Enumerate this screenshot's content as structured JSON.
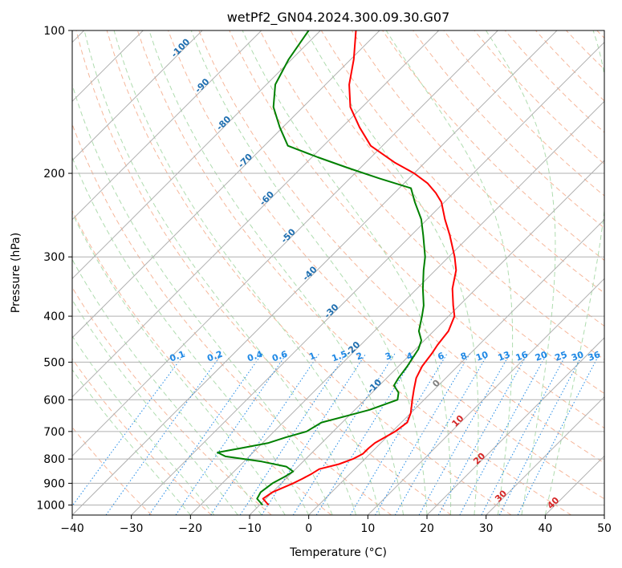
{
  "chart_data": {
    "type": "line",
    "subtype": "skew-t log-p diagram",
    "title": "wetPf2_GN04.2024.300.09.30.G07",
    "xlabel": "Temperature (°C)",
    "ylabel": "Pressure (hPa)",
    "xlim": [
      -40,
      50
    ],
    "ylim_pressure": [
      1050,
      100
    ],
    "y_scale": "log",
    "x_ticks": [
      "−40",
      "−30",
      "−20",
      "−10",
      "0",
      "10",
      "20",
      "30",
      "40",
      "50"
    ],
    "y_ticks": [
      "100",
      "200",
      "300",
      "400",
      "500",
      "600",
      "700",
      "800",
      "900",
      "1000"
    ],
    "grid": true,
    "colors": {
      "temperature": "#ff0000",
      "dewpoint": "#008000",
      "isotherm": "#b0b0b0",
      "dry_adiabat": "#f4a582",
      "moist_adiabat": "#a6d8a6",
      "mixing_ratio": "#1e88e5",
      "iso_label_blue": "#1f6fb0",
      "iso_label_red": "#d62728",
      "iso_label_gray": "#808080"
    },
    "isotherm_labels": [
      "-100",
      "-90",
      "-80",
      "-70",
      "-60",
      "-50",
      "-40",
      "-30",
      "-20",
      "-10",
      "0",
      "10",
      "20",
      "30",
      "40"
    ],
    "mixing_ratio_labels": [
      "0.1",
      "0.2",
      "0.4",
      "0.6",
      "1",
      "1.5",
      "2",
      "3",
      "4",
      "6",
      "8",
      "10",
      "13",
      "16",
      "20",
      "25",
      "30",
      "36"
    ],
    "series": [
      {
        "name": "Temperature",
        "points": [
          [
            1000,
            -8.5
          ],
          [
            970,
            -10.5
          ],
          [
            940,
            -10.0
          ],
          [
            900,
            -8.0
          ],
          [
            880,
            -7.2
          ],
          [
            860,
            -6.5
          ],
          [
            840,
            -6.0
          ],
          [
            820,
            -3.5
          ],
          [
            800,
            -2.0
          ],
          [
            780,
            -1.2
          ],
          [
            760,
            -1.2
          ],
          [
            740,
            -1.0
          ],
          [
            700,
            0.5
          ],
          [
            670,
            1.0
          ],
          [
            640,
            0.0
          ],
          [
            600,
            -2.0
          ],
          [
            570,
            -3.5
          ],
          [
            540,
            -5.0
          ],
          [
            510,
            -6.0
          ],
          [
            480,
            -6.5
          ],
          [
            460,
            -7.0
          ],
          [
            430,
            -7.5
          ],
          [
            400,
            -9.0
          ],
          [
            380,
            -11.0
          ],
          [
            350,
            -14.0
          ],
          [
            320,
            -16.5
          ],
          [
            300,
            -19.0
          ],
          [
            270,
            -23.5
          ],
          [
            250,
            -27.0
          ],
          [
            230,
            -30.5
          ],
          [
            220,
            -33.0
          ],
          [
            210,
            -36.0
          ],
          [
            200,
            -40.0
          ],
          [
            190,
            -45.0
          ],
          [
            175,
            -52.0
          ],
          [
            160,
            -57.0
          ],
          [
            145,
            -62.0
          ],
          [
            130,
            -66.0
          ],
          [
            115,
            -69.5
          ],
          [
            100,
            -74.0
          ]
        ]
      },
      {
        "name": "Dewpoint",
        "points": [
          [
            1000,
            -9.5
          ],
          [
            970,
            -11.5
          ],
          [
            940,
            -12.0
          ],
          [
            900,
            -11.5
          ],
          [
            870,
            -10.5
          ],
          [
            850,
            -10.0
          ],
          [
            830,
            -12.0
          ],
          [
            810,
            -17.0
          ],
          [
            790,
            -24.0
          ],
          [
            775,
            -26.0
          ],
          [
            760,
            -23.0
          ],
          [
            740,
            -19.0
          ],
          [
            720,
            -17.0
          ],
          [
            700,
            -14.5
          ],
          [
            670,
            -13.5
          ],
          [
            650,
            -10.5
          ],
          [
            630,
            -7.5
          ],
          [
            600,
            -4.5
          ],
          [
            580,
            -5.5
          ],
          [
            560,
            -7.5
          ],
          [
            540,
            -8.0
          ],
          [
            510,
            -8.5
          ],
          [
            490,
            -9.0
          ],
          [
            470,
            -9.5
          ],
          [
            450,
            -10.5
          ],
          [
            430,
            -12.5
          ],
          [
            400,
            -14.5
          ],
          [
            380,
            -16.0
          ],
          [
            350,
            -19.0
          ],
          [
            320,
            -22.0
          ],
          [
            300,
            -24.0
          ],
          [
            270,
            -28.0
          ],
          [
            250,
            -31.0
          ],
          [
            230,
            -35.0
          ],
          [
            215,
            -38.0
          ],
          [
            205,
            -45.0
          ],
          [
            195,
            -52.0
          ],
          [
            185,
            -59.0
          ],
          [
            175,
            -66.0
          ],
          [
            160,
            -70.5
          ],
          [
            145,
            -75.0
          ],
          [
            130,
            -78.5
          ],
          [
            115,
            -80.5
          ],
          [
            100,
            -82.0
          ]
        ]
      }
    ]
  }
}
